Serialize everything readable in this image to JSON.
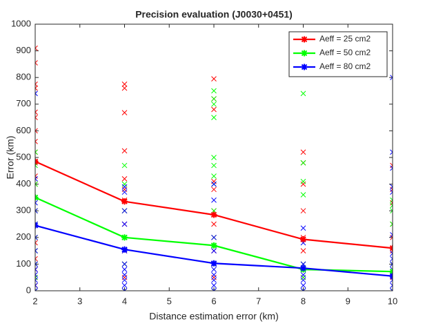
{
  "chart_data": {
    "type": "line",
    "title": "Precision evaluation (J0030+0451)",
    "x_label": "Distance estimation error (km)",
    "y_label": "Error (km)",
    "x": [
      2,
      4,
      6,
      8,
      10
    ],
    "xlim": [
      2,
      10
    ],
    "xticks": [
      2,
      3,
      4,
      5,
      6,
      7,
      8,
      9,
      10
    ],
    "ylim": [
      0,
      1000
    ],
    "yticks": [
      0,
      100,
      200,
      300,
      400,
      500,
      600,
      700,
      800,
      900,
      1000
    ],
    "legend_position": "upper-right",
    "series": [
      {
        "name": "Aeff = 25 cm2",
        "color": "#ff0000",
        "values": [
          485,
          335,
          285,
          193,
          160
        ],
        "points_x": [
          2,
          2,
          2,
          2,
          2,
          2,
          2,
          2,
          2,
          2,
          2,
          2,
          2,
          2,
          2,
          2,
          2,
          2,
          2,
          2,
          2,
          2,
          2,
          2,
          4,
          4,
          4,
          4,
          4,
          4,
          4,
          4,
          4,
          4,
          4,
          4,
          4,
          4,
          6,
          6,
          6,
          6,
          6,
          6,
          6,
          6,
          6,
          6,
          6,
          6,
          8,
          8,
          8,
          8,
          8,
          8,
          8,
          8,
          8,
          10,
          10,
          10,
          10,
          10,
          10,
          10,
          10,
          10
        ],
        "points_y": [
          910,
          855,
          775,
          760,
          670,
          650,
          600,
          560,
          520,
          480,
          430,
          400,
          350,
          300,
          250,
          200,
          180,
          150,
          120,
          100,
          80,
          50,
          20,
          0,
          775,
          760,
          668,
          525,
          420,
          380,
          340,
          300,
          250,
          200,
          150,
          100,
          50,
          0,
          795,
          720,
          680,
          410,
          380,
          300,
          250,
          200,
          150,
          100,
          50,
          0,
          520,
          480,
          400,
          300,
          200,
          150,
          100,
          50,
          0,
          470,
          380,
          330,
          250,
          200,
          150,
          100,
          50,
          0
        ]
      },
      {
        "name": "Aeff = 50 cm2",
        "color": "#00ff00",
        "values": [
          350,
          200,
          170,
          80,
          72
        ],
        "points_x": [
          2,
          2,
          2,
          2,
          2,
          2,
          2,
          2,
          2,
          2,
          2,
          4,
          4,
          4,
          4,
          4,
          4,
          6,
          6,
          6,
          6,
          6,
          6,
          6,
          6,
          6,
          6,
          6,
          6,
          8,
          8,
          8,
          8,
          8,
          8,
          8,
          10,
          10,
          10,
          10,
          10,
          10
        ],
        "points_y": [
          520,
          470,
          400,
          350,
          300,
          250,
          200,
          150,
          100,
          50,
          0,
          470,
          400,
          300,
          200,
          100,
          0,
          750,
          720,
          700,
          650,
          500,
          470,
          430,
          400,
          300,
          200,
          100,
          0,
          740,
          480,
          410,
          360,
          100,
          50,
          0,
          340,
          320,
          300,
          250,
          100,
          0
        ]
      },
      {
        "name": "Aeff = 80 cm2",
        "color": "#0000ff",
        "values": [
          245,
          155,
          103,
          85,
          55
        ],
        "points_x": [
          2,
          2,
          2,
          2,
          2,
          2,
          2,
          2,
          2,
          2,
          2,
          2,
          2,
          4,
          4,
          4,
          4,
          4,
          4,
          4,
          4,
          4,
          4,
          4,
          4,
          6,
          6,
          6,
          6,
          6,
          6,
          6,
          6,
          6,
          6,
          8,
          8,
          8,
          8,
          8,
          8,
          8,
          8,
          10,
          10,
          10,
          10,
          10,
          10,
          10,
          10,
          10,
          10,
          10,
          10,
          10,
          10
        ],
        "points_y": [
          740,
          420,
          330,
          300,
          250,
          200,
          150,
          100,
          80,
          60,
          40,
          20,
          0,
          390,
          370,
          300,
          250,
          200,
          150,
          100,
          80,
          60,
          40,
          20,
          0,
          400,
          340,
          200,
          150,
          100,
          80,
          60,
          40,
          20,
          0,
          235,
          180,
          100,
          80,
          60,
          40,
          20,
          0,
          800,
          520,
          460,
          390,
          370,
          210,
          140,
          120,
          100,
          80,
          60,
          40,
          20,
          0
        ]
      }
    ]
  }
}
